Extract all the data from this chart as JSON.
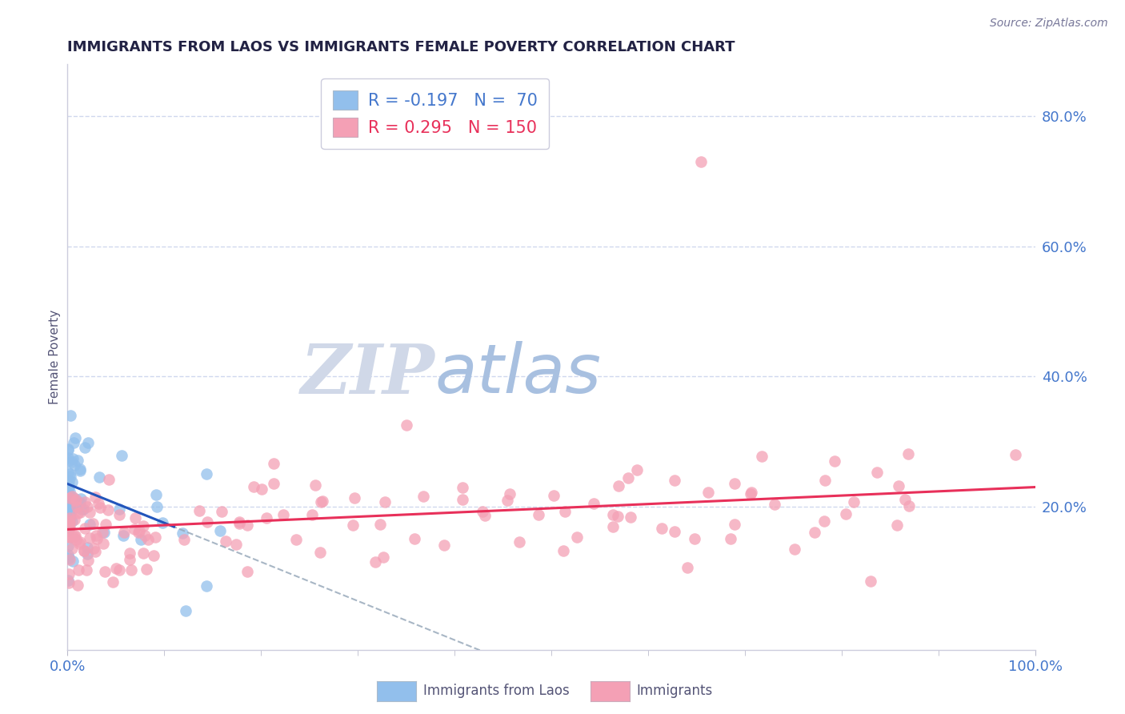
{
  "title": "IMMIGRANTS FROM LAOS VS IMMIGRANTS FEMALE POVERTY CORRELATION CHART",
  "source_text": "Source: ZipAtlas.com",
  "ylabel": "Female Poverty",
  "xlim": [
    0.0,
    1.0
  ],
  "ylim": [
    -0.02,
    0.88
  ],
  "yticks": [
    0.2,
    0.4,
    0.6,
    0.8
  ],
  "ytick_labels": [
    "20.0%",
    "40.0%",
    "60.0%",
    "80.0%"
  ],
  "xtick_labels": [
    "0.0%",
    "100.0%"
  ],
  "legend_blue_R": "-0.197",
  "legend_blue_N": "70",
  "legend_pink_R": "0.295",
  "legend_pink_N": "150",
  "blue_color": "#92bfec",
  "pink_color": "#f4a0b5",
  "trend_blue_color": "#2255bb",
  "trend_pink_color": "#e8305a",
  "watermark_zip": "ZIP",
  "watermark_atlas": "atlas",
  "watermark_zip_color": "#d0d8e8",
  "watermark_atlas_color": "#a8c0e0",
  "axis_color": "#4477cc",
  "grid_color": "#d0d8ee",
  "title_color": "#222244",
  "source_color": "#777799",
  "ylabel_color": "#555577",
  "bottom_legend_color": "#555577",
  "figsize": [
    14.06,
    8.92
  ],
  "dpi": 100
}
